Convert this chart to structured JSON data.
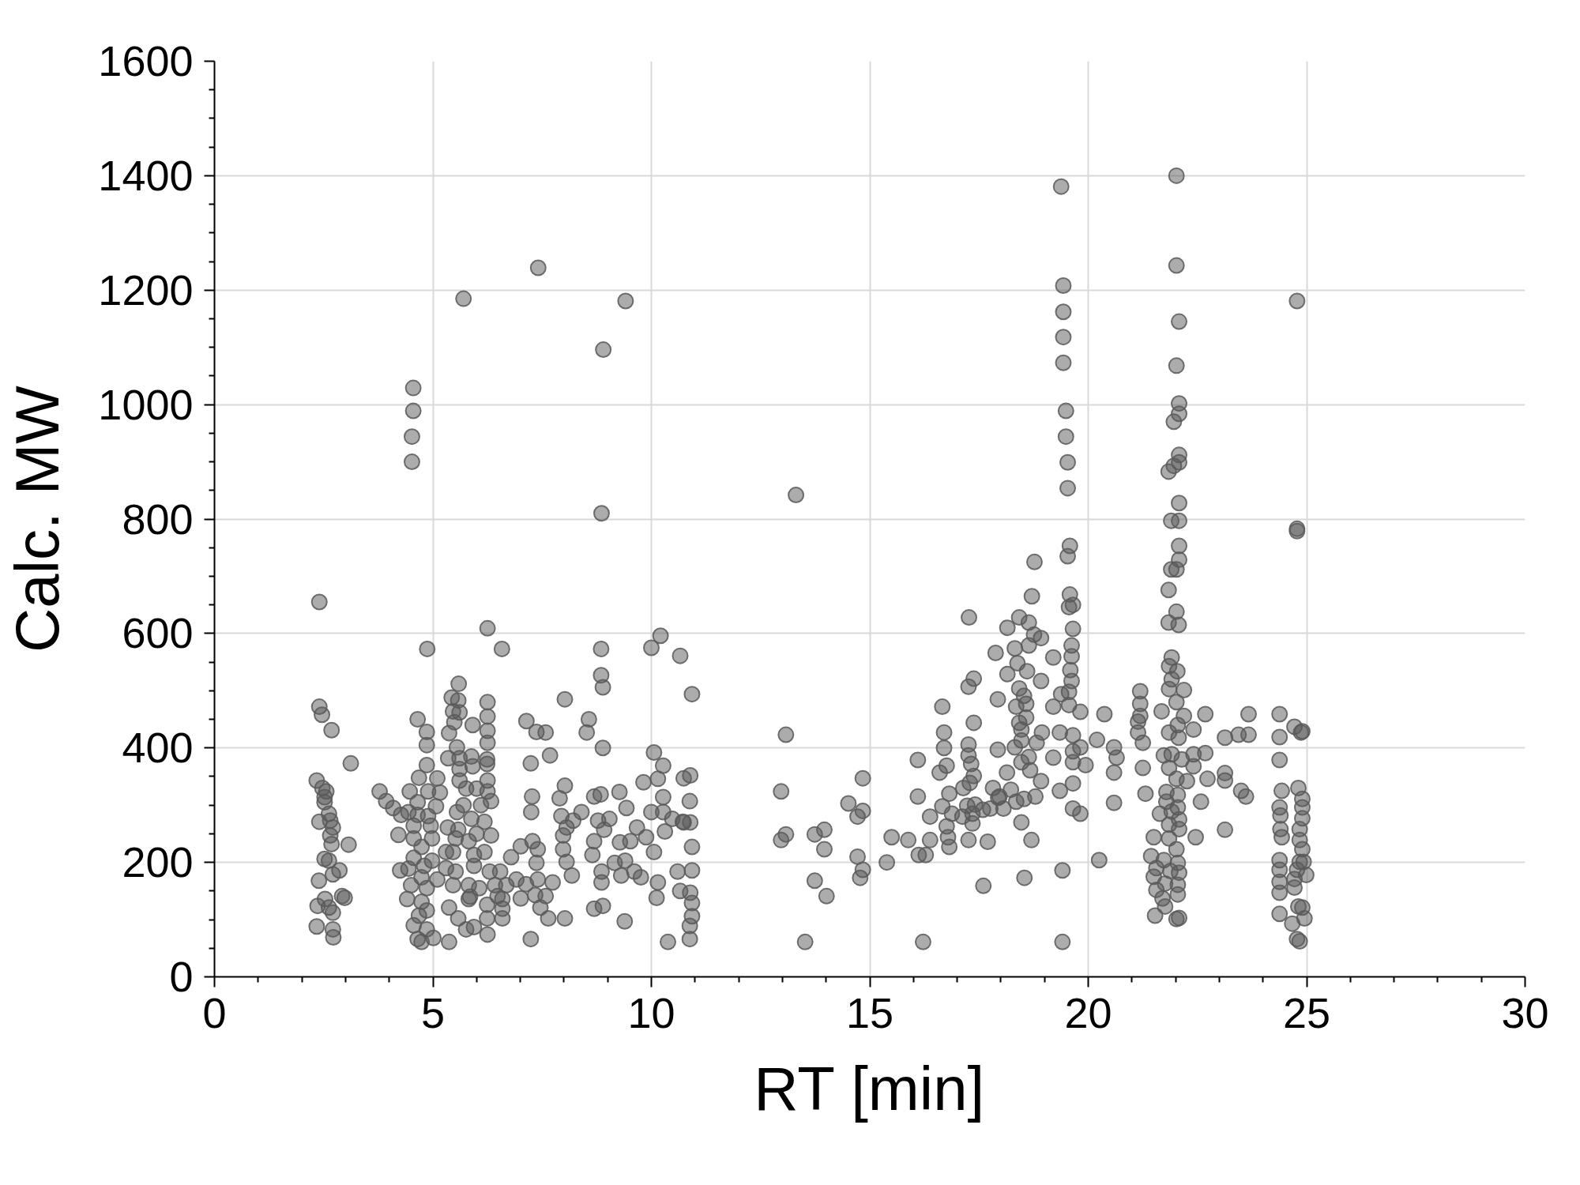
{
  "chart_data": {
    "type": "scatter",
    "xlabel": "RT [min]",
    "ylabel": "Calc. MW",
    "xlim": [
      0,
      30
    ],
    "ylim": [
      0,
      1600
    ],
    "xticks": [
      0,
      5,
      10,
      15,
      20,
      25,
      30
    ],
    "yticks": [
      0,
      200,
      400,
      600,
      800,
      1000,
      1200,
      1400,
      1600
    ],
    "grid": true,
    "marker": "circle",
    "color": "#595959",
    "x": [
      2.4,
      2.4,
      2.46,
      2.68,
      3.12,
      2.34,
      2.47,
      2.56,
      2.52,
      2.52,
      2.62,
      2.4,
      2.65,
      2.71,
      2.65,
      2.68,
      3.07,
      2.52,
      2.62,
      2.86,
      2.71,
      2.39,
      2.92,
      2.98,
      2.53,
      2.36,
      2.62,
      2.71,
      2.34,
      2.71,
      2.72,
      3.78,
      3.93,
      4.09,
      4.27,
      4.21,
      4.25,
      4.55,
      4.55,
      4.52,
      4.52,
      4.65,
      4.86,
      4.86,
      4.86,
      4.68,
      5.1,
      4.47,
      4.89,
      5.16,
      4.65,
      5.07,
      4.44,
      4.65,
      4.89,
      4.56,
      4.95,
      4.56,
      4.98,
      4.74,
      4.56,
      4.8,
      4.98,
      4.44,
      4.74,
      4.5,
      4.86,
      4.41,
      4.74,
      4.86,
      4.68,
      4.56,
      4.86,
      4.65,
      4.74,
      5.01,
      5.1,
      4.87,
      5.7,
      5.59,
      5.43,
      5.58,
      5.46,
      5.61,
      5.37,
      5.49,
      5.91,
      6.25,
      6.25,
      6.25,
      6.25,
      6.25,
      6.58,
      5.35,
      5.55,
      5.61,
      5.61,
      5.88,
      5.91,
      6.24,
      6.24,
      5.61,
      5.76,
      6.25,
      6.25,
      6.33,
      6.0,
      5.55,
      5.88,
      6.18,
      5.34,
      6.33,
      5.52,
      5.82,
      5.46,
      6.18,
      5.52,
      5.94,
      6.3,
      6.54,
      5.46,
      5.82,
      6.06,
      6.42,
      5.37,
      5.82,
      6.24,
      6.59,
      6.59,
      6.59,
      5.58,
      6.24,
      5.76,
      5.94,
      6.25,
      5.37,
      6.68,
      6.48,
      5.58,
      5.94,
      5.3,
      5.3,
      6.1,
      5.7,
      6.0,
      5.85,
      7.41,
      6.79,
      7.01,
      7.28,
      7.4,
      7.37,
      6.91,
      7.13,
      7.4,
      7.74,
      7.01,
      7.34,
      7.58,
      7.46,
      7.64,
      8.02,
      7.24,
      7.14,
      7.37,
      7.58,
      7.68,
      7.24,
      7.27,
      7.25,
      8.02,
      8.02,
      7.9,
      7.94,
      8.06,
      8.21,
      7.98,
      7.98,
      8.06,
      8.18,
      9.41,
      8.9,
      8.86,
      8.4,
      8.57,
      8.52,
      8.85,
      8.85,
      8.89,
      8.89,
      8.69,
      8.84,
      8.78,
      8.69,
      8.65,
      8.92,
      8.86,
      8.86,
      8.69,
      8.89,
      9.04,
      9.27,
      9.43,
      9.28,
      9.52,
      9.16,
      9.4,
      9.61,
      9.76,
      9.31,
      9.39,
      9.67,
      9.82,
      10.0,
      10.21,
      10.66,
      10.93,
      10.06,
      10.27,
      10.15,
      10.27,
      10.0,
      10.27,
      10.48,
      10.72,
      10.31,
      9.88,
      10.06,
      10.6,
      10.15,
      10.12,
      10.66,
      10.38,
      10.93,
      10.93,
      10.88,
      10.89,
      10.74,
      10.74,
      10.89,
      10.89,
      10.93,
      10.93,
      10.88,
      10.88,
      13.31,
      13.08,
      12.97,
      12.97,
      13.08,
      13.52,
      13.74,
      13.96,
      13.96,
      13.74,
      14.01,
      14.51,
      14.84,
      14.84,
      14.72,
      14.72,
      14.84,
      14.78,
      15.39,
      15.5,
      15.88,
      16.12,
      16.28,
      16.38,
      16.22,
      16.1,
      16.1,
      16.38,
      16.66,
      16.7,
      16.7,
      16.76,
      16.6,
      16.82,
      16.66,
      16.88,
      16.76,
      16.79,
      16.82,
      17.27,
      17.38,
      17.26,
      17.38,
      17.26,
      17.26,
      17.32,
      17.38,
      17.14,
      17.29,
      17.12,
      17.23,
      17.41,
      17.35,
      17.35,
      17.59,
      17.76,
      17.26,
      17.7,
      17.6,
      17.82,
      17.94,
      18.06,
      17.88,
      17.93,
      17.93,
      18.15,
      18.32,
      18.38,
      18.15,
      18.42,
      18.64,
      18.76,
      18.92,
      18.64,
      18.6,
      18.92,
      18.42,
      18.53,
      18.35,
      18.58,
      18.58,
      18.42,
      18.47,
      18.47,
      18.32,
      18.82,
      18.64,
      18.47,
      18.67,
      18.92,
      18.14,
      17.97,
      18.23,
      18.35,
      18.53,
      18.79,
      18.47,
      18.7,
      18.54,
      18.77,
      18.71,
      19.2,
      19.2,
      19.2,
      19.35,
      19.35,
      19.41,
      19.41,
      18.94,
      19.38,
      19.43,
      19.43,
      19.43,
      19.43,
      19.49,
      19.49,
      19.53,
      19.53,
      19.58,
      19.53,
      19.58,
      19.65,
      19.56,
      19.65,
      19.62,
      19.62,
      19.59,
      19.62,
      19.56,
      19.38,
      19.56,
      19.82,
      19.65,
      19.82,
      19.65,
      19.94,
      19.65,
      19.65,
      19.65,
      19.82,
      20.37,
      20.2,
      20.59,
      20.65,
      20.59,
      20.59,
      20.25,
      21.19,
      21.19,
      21.19,
      21.14,
      21.14,
      21.25,
      21.25,
      21.31,
      22.02,
      22.02,
      22.08,
      22.02,
      22.08,
      22.08,
      21.96,
      22.08,
      22.08,
      21.96,
      21.84,
      22.08,
      21.9,
      22.08,
      22.08,
      22.08,
      21.9,
      22.02,
      21.84,
      22.02,
      21.84,
      22.07,
      21.91,
      21.85,
      22.04,
      21.91,
      21.85,
      22.19,
      22.02,
      21.68,
      22.19,
      21.85,
      22.05,
      22.07,
      22.41,
      21.73,
      21.91,
      22.14,
      22.41,
      22.41,
      22.68,
      21.85,
      22.02,
      22.26,
      22.73,
      21.79,
      22.05,
      21.79,
      22.05,
      21.91,
      21.64,
      22.08,
      22.58,
      21.85,
      22.08,
      21.5,
      21.85,
      22.46,
      22.02,
      21.44,
      21.73,
      22.05,
      21.56,
      21.88,
      22.08,
      21.5,
      22.05,
      21.76,
      21.56,
      22.05,
      21.7,
      21.76,
      21.53,
      22.02,
      22.08,
      22.68,
      23.13,
      23.44,
      23.67,
      23.67,
      23.13,
      23.13,
      23.5,
      23.61,
      23.13,
      24.78,
      24.78,
      24.78,
      24.38,
      24.38,
      24.72,
      24.87,
      24.9,
      24.38,
      24.43,
      24.81,
      24.9,
      24.38,
      24.9,
      24.4,
      24.9,
      24.4,
      24.84,
      24.43,
      24.84,
      24.9,
      24.38,
      24.84,
      24.93,
      24.38,
      24.78,
      24.99,
      24.38,
      24.72,
      24.38,
      24.72,
      24.9,
      24.81,
      24.38,
      24.67,
      24.95,
      24.78,
      24.84
    ],
    "values": [
      655,
      472,
      458,
      431,
      373,
      343,
      330,
      324,
      314,
      305,
      285,
      271,
      273,
      261,
      247,
      232,
      231,
      206,
      203,
      186,
      179,
      168,
      141,
      138,
      136,
      124,
      121,
      112,
      88,
      83,
      69,
      324,
      307,
      295,
      283,
      248,
      186,
      1029,
      989,
      944,
      900,
      450,
      428,
      405,
      370,
      348,
      347,
      324,
      324,
      322,
      305,
      298,
      288,
      283,
      281,
      264,
      264,
      242,
      242,
      227,
      208,
      194,
      203,
      189,
      174,
      160,
      155,
      136,
      131,
      116,
      107,
      90,
      83,
      66,
      61,
      68,
      170,
      573,
      1185,
      512,
      488,
      483,
      464,
      462,
      426,
      445,
      440,
      480,
      455,
      430,
      409,
      609,
      573,
      382,
      401,
      382,
      363,
      385,
      368,
      380,
      372,
      343,
      329,
      343,
      324,
      307,
      329,
      288,
      276,
      271,
      261,
      247,
      242,
      237,
      218,
      218,
      184,
      194,
      184,
      184,
      160,
      160,
      155,
      160,
      121,
      136,
      126,
      136,
      119,
      102,
      102,
      102,
      83,
      87,
      74,
      61,
      160,
      141,
      257,
      213,
      218,
      190,
      300,
      300,
      250,
      140,
      1239,
      209,
      228,
      237,
      223,
      199,
      170,
      162,
      170,
      165,
      137,
      143,
      141,
      121,
      102,
      102,
      66,
      447,
      428,
      427,
      387,
      373,
      315,
      288,
      485,
      334,
      312,
      281,
      261,
      273,
      247,
      223,
      201,
      177,
      1181,
      1096,
      810,
      288,
      450,
      427,
      573,
      527,
      506,
      400,
      315,
      319,
      273,
      237,
      213,
      257,
      184,
      165,
      119,
      124,
      276,
      323,
      295,
      235,
      237,
      199,
      203,
      184,
      174,
      177,
      97,
      261,
      340,
      575,
      596,
      561,
      494,
      392,
      369,
      346,
      314,
      288,
      288,
      276,
      271,
      254,
      244,
      218,
      184,
      165,
      138,
      150,
      61,
      186,
      227,
      307,
      352,
      347,
      270,
      270,
      147,
      129,
      106,
      89,
      66,
      842,
      423,
      324,
      239,
      249,
      61,
      249,
      257,
      223,
      168,
      141,
      303,
      347,
      290,
      280,
      210,
      187,
      173,
      200,
      244,
      239,
      213,
      213,
      239,
      61,
      379,
      315,
      280,
      472,
      427,
      400,
      369,
      357,
      320,
      298,
      285,
      263,
      244,
      227,
      628,
      521,
      507,
      444,
      406,
      387,
      372,
      351,
      330,
      339,
      280,
      299,
      301,
      285,
      268,
      292,
      294,
      239,
      236,
      159,
      330,
      313,
      294,
      566,
      485,
      397,
      610,
      574,
      548,
      529,
      628,
      619,
      598,
      592,
      579,
      534,
      517,
      504,
      491,
      472,
      477,
      453,
      444,
      432,
      413,
      401,
      409,
      384,
      375,
      361,
      342,
      357,
      315,
      327,
      306,
      311,
      315,
      270,
      239,
      173,
      725,
      665,
      558,
      472,
      383,
      427,
      325,
      186,
      61,
      427,
      1381,
      1208,
      1162,
      1118,
      1073,
      989,
      944,
      899,
      854,
      753,
      735,
      668,
      650,
      646,
      608,
      579,
      560,
      536,
      517,
      498,
      494,
      475,
      463,
      422,
      401,
      394,
      370,
      375,
      338,
      294,
      285,
      459,
      414,
      401,
      383,
      357,
      304,
      204,
      499,
      477,
      456,
      446,
      427,
      409,
      365,
      320,
      1400,
      1243,
      1145,
      1068,
      1002,
      984,
      970,
      912,
      899,
      893,
      883,
      828,
      797,
      797,
      753,
      729,
      712,
      712,
      676,
      638,
      619,
      615,
      558,
      543,
      534,
      520,
      503,
      501,
      480,
      464,
      456,
      427,
      440,
      418,
      432,
      387,
      389,
      380,
      389,
      368,
      391,
      365,
      346,
      342,
      346,
      323,
      318,
      306,
      296,
      289,
      285,
      275,
      306,
      266,
      258,
      244,
      242,
      244,
      223,
      211,
      204,
      199,
      190,
      185,
      182,
      175,
      161,
      163,
      152,
      144,
      137,
      123,
      107,
      101,
      103,
      459,
      418,
      423,
      423,
      459,
      356,
      343,
      325,
      315,
      257,
      1181,
      783,
      779,
      459,
      419,
      437,
      427,
      429,
      379,
      325,
      330,
      311,
      296,
      296,
      282,
      277,
      258,
      258,
      244,
      239,
      223,
      204,
      201,
      201,
      187,
      187,
      178,
      166,
      171,
      147,
      156,
      121,
      123,
      110,
      93,
      102,
      66,
      62
    ]
  }
}
